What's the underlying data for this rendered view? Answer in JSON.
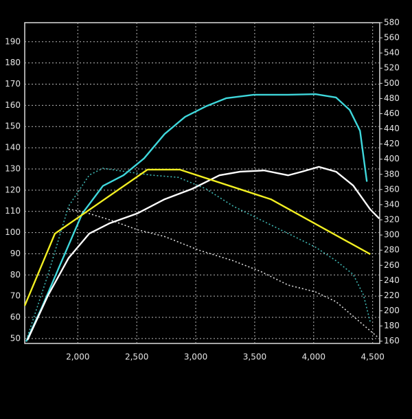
{
  "chart_data": {
    "type": "line",
    "xlim": [
      1550,
      4560
    ],
    "xticks": [
      {
        "value": 2000,
        "label": "2,000"
      },
      {
        "value": 2500,
        "label": "2,500"
      },
      {
        "value": 3000,
        "label": "3,000"
      },
      {
        "value": 3500,
        "label": "3,500"
      },
      {
        "value": 4000,
        "label": "4,000"
      },
      {
        "value": 4500,
        "label": "4,500"
      }
    ],
    "ylim": [
      47.7,
      199
    ],
    "yticks": [
      50,
      60,
      70,
      80,
      90,
      100,
      110,
      120,
      130,
      140,
      150,
      160,
      170,
      180,
      190
    ],
    "y2lim": [
      157,
      580
    ],
    "y2ticks": [
      160,
      180,
      200,
      220,
      240,
      260,
      280,
      300,
      320,
      340,
      360,
      380,
      400,
      420,
      440,
      460,
      480,
      500,
      520,
      540,
      560,
      580
    ],
    "grid": true,
    "series": [
      {
        "color": "#3fd8dc",
        "dash": false,
        "x": [
          1562,
          1690,
          1864,
          2038,
          2213,
          2387,
          2562,
          2736,
          2910,
          3085,
          3260,
          3492,
          3783,
          4015,
          4190,
          4306,
          4393,
          4451
        ],
        "values": [
          48.6,
          64,
          86.6,
          109,
          122,
          127,
          135,
          146.5,
          154.6,
          159.5,
          163.4,
          165,
          165,
          165.3,
          163.7,
          157.8,
          148,
          124
        ]
      },
      {
        "color": "#ffffff",
        "dash": false,
        "x": [
          1573,
          1748,
          1922,
          2097,
          2271,
          2504,
          2736,
          2969,
          3201,
          3376,
          3579,
          3783,
          3899,
          4044,
          4190,
          4335,
          4480,
          4556
        ],
        "values": [
          49.3,
          70.4,
          88,
          99.5,
          104.4,
          109,
          115.7,
          120.6,
          127,
          128.7,
          129.3,
          127,
          128.7,
          131,
          128.7,
          122.2,
          110.9,
          106.6
        ]
      },
      {
        "color": "#3fb8b4",
        "dash": true,
        "axis": "y2",
        "x": [
          1573,
          1748,
          1922,
          2097,
          2213,
          2387,
          2620,
          2852,
          3085,
          3318,
          3550,
          3783,
          4015,
          4190,
          4335,
          4422,
          4480
        ],
        "values": [
          166,
          248,
          338,
          379,
          388,
          384,
          379,
          376,
          361,
          338,
          320,
          302,
          284,
          266,
          248,
          221,
          185
        ]
      },
      {
        "color": "#dddddd",
        "dash": true,
        "axis": "y2",
        "x": [
          1922,
          2038,
          2271,
          2504,
          2736,
          3027,
          3318,
          3550,
          3783,
          4015,
          4190,
          4364,
          4538
        ],
        "values": [
          334,
          331,
          320,
          307,
          298,
          280,
          266,
          252,
          234,
          225,
          212,
          189,
          166
        ]
      },
      {
        "color": "#f2ef22",
        "dash": false,
        "x": [
          1550,
          1806,
          2591,
          2864,
          3637,
          4480
        ],
        "values": [
          65.5,
          99.5,
          129.7,
          129.7,
          115.7,
          89.8
        ]
      }
    ]
  }
}
